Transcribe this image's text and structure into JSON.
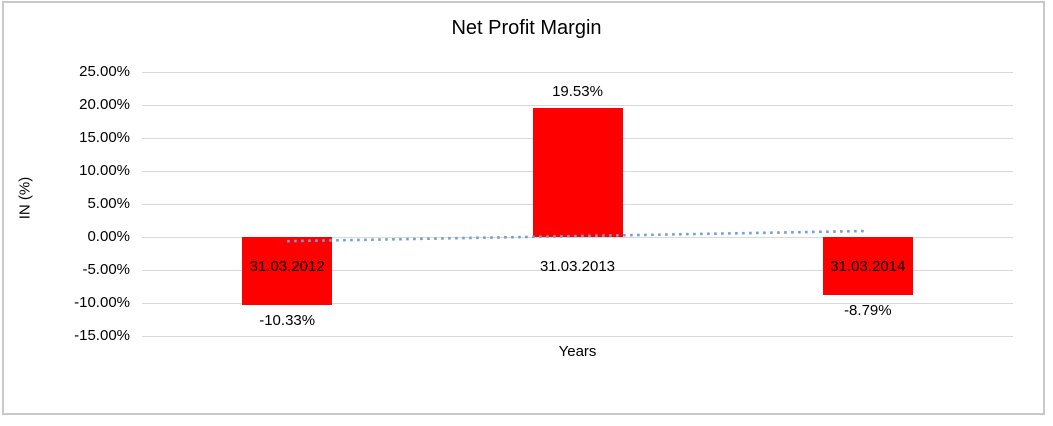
{
  "chart": {
    "title": "Net Profit Margin",
    "colors": {
      "bar": "#ff0000",
      "trendline": "#6f9fd5",
      "gridline": "#d9d9d9",
      "frame": "#c9c9c9",
      "text": "#000000"
    }
  },
  "chart_data": {
    "type": "bar",
    "title": "Net Profit Margin",
    "xlabel": "Years",
    "ylabel": "IN (%)",
    "categories": [
      "31.03.2012",
      "31.03.2013",
      "31.03.2014"
    ],
    "values": [
      -10.33,
      19.53,
      -8.79
    ],
    "data_labels": [
      "-10.33%",
      "19.53%",
      "-8.79%"
    ],
    "series": [
      {
        "name": "Net Profit Margin",
        "values": [
          -10.33,
          19.53,
          -8.79
        ]
      }
    ],
    "y_ticks": [
      "25.00%",
      "20.00%",
      "15.00%",
      "10.00%",
      "5.00%",
      "0.00%",
      "-5.00%",
      "-10.00%",
      "-15.00%"
    ],
    "y_tick_values": [
      25,
      20,
      15,
      10,
      5,
      0,
      -5,
      -10,
      -15
    ],
    "ylim": [
      -15,
      25
    ],
    "grid": true,
    "legend": "none",
    "trendline": {
      "type": "linear",
      "style": "dotted",
      "start_value": -0.63,
      "end_value": 0.91
    }
  }
}
